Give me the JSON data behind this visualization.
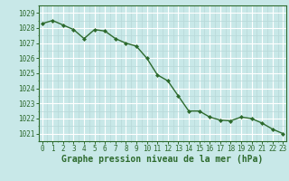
{
  "x": [
    0,
    1,
    2,
    3,
    4,
    5,
    6,
    7,
    8,
    9,
    10,
    11,
    12,
    13,
    14,
    15,
    16,
    17,
    18,
    19,
    20,
    21,
    22,
    23
  ],
  "y": [
    1028.3,
    1028.5,
    1028.2,
    1027.9,
    1027.3,
    1027.9,
    1027.8,
    1027.3,
    1027.0,
    1026.8,
    1026.0,
    1024.9,
    1024.5,
    1023.5,
    1022.5,
    1022.5,
    1022.1,
    1021.9,
    1021.85,
    1022.1,
    1022.0,
    1021.7,
    1021.3,
    1021.0
  ],
  "ylim": [
    1020.5,
    1029.5
  ],
  "yticks": [
    1021,
    1022,
    1023,
    1024,
    1025,
    1026,
    1027,
    1028,
    1029
  ],
  "xticks": [
    0,
    1,
    2,
    3,
    4,
    5,
    6,
    7,
    8,
    9,
    10,
    11,
    12,
    13,
    14,
    15,
    16,
    17,
    18,
    19,
    20,
    21,
    22,
    23
  ],
  "line_color": "#2d6a2d",
  "marker": "D",
  "marker_size": 2.0,
  "line_width": 1.0,
  "bg_color": "#c8e8e8",
  "grid_major_color": "#ffffff",
  "grid_minor_color": "#b8d8d8",
  "xlabel": "Graphe pression niveau de la mer (hPa)",
  "xlabel_color": "#2d6a2d",
  "tick_color": "#2d6a2d",
  "tick_fontsize": 5.5,
  "xlabel_fontsize": 7.0
}
